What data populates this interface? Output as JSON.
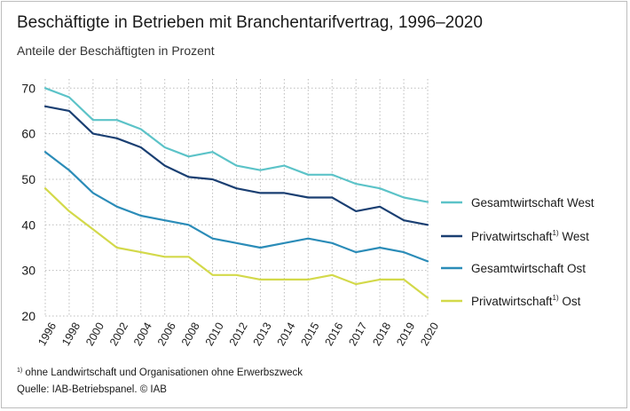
{
  "chart_data": {
    "type": "line",
    "title": "Beschäftigte in Betrieben mit Branchentarifvertrag, 1996–2020",
    "subtitle": "Anteile der Beschäftigten in Prozent",
    "x": [
      "1996",
      "1998",
      "2000",
      "2002",
      "2004",
      "2006",
      "2008",
      "2010",
      "2012",
      "2013",
      "2014",
      "2015",
      "2016",
      "2017",
      "2018",
      "2019",
      "2020"
    ],
    "ylim": [
      20,
      72
    ],
    "yticks": [
      20,
      30,
      40,
      50,
      60,
      70
    ],
    "grid": true,
    "legend_position": "right",
    "series": [
      {
        "name": "Gesamtwirtschaft West",
        "footnote": "",
        "color": "#5cc3c8",
        "values": [
          70,
          68,
          63,
          63,
          61,
          57,
          55,
          56,
          53,
          52,
          53,
          51,
          51,
          49,
          48,
          46,
          45
        ]
      },
      {
        "name": "Privatwirtschaft",
        "footnote": "1)",
        "suffix": " West",
        "color": "#1a3f72",
        "values": [
          66,
          65,
          60,
          59,
          57,
          53,
          50.5,
          50,
          48,
          47,
          47,
          46,
          46,
          43,
          44,
          41,
          40
        ]
      },
      {
        "name": "Gesamtwirtschaft Ost",
        "footnote": "",
        "color": "#2b8cb8",
        "values": [
          56,
          52,
          47,
          44,
          42,
          41,
          40,
          37,
          36,
          35,
          36,
          37,
          36,
          34,
          35,
          34,
          32
        ]
      },
      {
        "name": "Privatwirtschaft",
        "footnote": "1)",
        "suffix": " Ost",
        "color": "#d3d94a",
        "values": [
          48,
          43,
          39,
          35,
          34,
          33,
          33,
          29,
          29,
          28,
          28,
          28,
          29,
          27,
          28,
          28,
          24
        ]
      }
    ]
  },
  "footnote": {
    "marker": "1)",
    "text": " ohne Landwirtschaft und Organisationen ohne Erwerbszweck"
  },
  "source": "Quelle: IAB-Betriebspanel. © IAB"
}
